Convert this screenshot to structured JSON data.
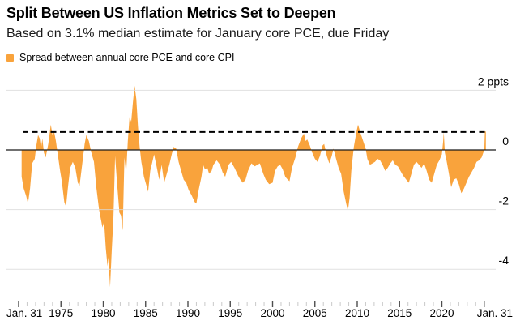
{
  "header": {
    "title": "Split Between US Inflation Metrics Set to Deepen",
    "subtitle": "Based on 3.1% median estimate for January core PCE, due Friday"
  },
  "legend": {
    "label": "Spread between annual core PCE and core CPI",
    "swatch_color": "#F9A33C"
  },
  "colors": {
    "accent_orange": "#F9A33C",
    "gridline": "#D9D9D9",
    "zero_line": "#1A1A1A",
    "dashed_line": "#000000",
    "minor_tick": "#C9C9C9",
    "major_tick": "#4D4D4D",
    "text": "#000000"
  },
  "chart_data": {
    "type": "area",
    "title": "Split Between US Inflation Metrics Set to Deepen",
    "unit": "ppts",
    "xlabel": "",
    "ylabel": "ppts",
    "xlim": [
      1970,
      2025.3
    ],
    "ylim": [
      -4.9,
      2.4
    ],
    "grid": "horizontal",
    "legend_position": "top-left",
    "x_ticks": {
      "minor_every_years": 1,
      "major": [
        {
          "year": 1970,
          "label": "Jan. 31"
        },
        {
          "year": 1975,
          "label": "1975"
        },
        {
          "year": 1980,
          "label": "1980"
        },
        {
          "year": 1985,
          "label": "1985"
        },
        {
          "year": 1990,
          "label": "1990"
        },
        {
          "year": 1995,
          "label": "1995"
        },
        {
          "year": 2000,
          "label": "2000"
        },
        {
          "year": 2005,
          "label": "2005"
        },
        {
          "year": 2010,
          "label": "2010"
        },
        {
          "year": 2015,
          "label": "2015"
        },
        {
          "year": 2020,
          "label": "2020"
        },
        {
          "year": 2025,
          "label": "Jan. 31"
        }
      ]
    },
    "y_ticks": [
      {
        "value": 2,
        "label": "2 ppts"
      },
      {
        "value": 0,
        "label": "0"
      },
      {
        "value": -2,
        "label": "-2"
      },
      {
        "value": -4,
        "label": "-4"
      }
    ],
    "reference_line": {
      "value": 0.6,
      "style": "dashed"
    },
    "series": [
      {
        "name": "Spread between annual core PCE and core CPI",
        "color": "#F9A33C",
        "points": [
          [
            1970.35,
            -0.9
          ],
          [
            1970.6,
            -1.3
          ],
          [
            1970.9,
            -1.55
          ],
          [
            1971.1,
            -1.8
          ],
          [
            1971.35,
            -1.3
          ],
          [
            1971.6,
            -0.45
          ],
          [
            1971.9,
            -0.3
          ],
          [
            1972.1,
            0.15
          ],
          [
            1972.3,
            0.5
          ],
          [
            1972.5,
            0.38
          ],
          [
            1972.65,
            0.05
          ],
          [
            1972.8,
            0.38
          ],
          [
            1973.0,
            -0.1
          ],
          [
            1973.2,
            -0.25
          ],
          [
            1973.5,
            0.2
          ],
          [
            1973.8,
            0.85
          ],
          [
            1974.0,
            0.5
          ],
          [
            1974.2,
            0.6
          ],
          [
            1974.4,
            0.3
          ],
          [
            1974.6,
            -0.1
          ],
          [
            1974.9,
            -0.7
          ],
          [
            1975.1,
            -1.05
          ],
          [
            1975.4,
            -1.75
          ],
          [
            1975.6,
            -1.9
          ],
          [
            1975.85,
            -1.2
          ],
          [
            1976.1,
            -0.6
          ],
          [
            1976.4,
            -0.4
          ],
          [
            1976.7,
            -0.6
          ],
          [
            1977.0,
            -1.1
          ],
          [
            1977.2,
            -1.2
          ],
          [
            1977.5,
            -0.5
          ],
          [
            1977.8,
            0.2
          ],
          [
            1978.0,
            0.5
          ],
          [
            1978.3,
            0.3
          ],
          [
            1978.6,
            -0.1
          ],
          [
            1978.9,
            -0.4
          ],
          [
            1979.2,
            -1.3
          ],
          [
            1979.5,
            -2.0
          ],
          [
            1979.9,
            -2.6
          ],
          [
            1980.1,
            -2.4
          ],
          [
            1980.3,
            -3.3
          ],
          [
            1980.5,
            -3.9
          ],
          [
            1980.6,
            -3.6
          ],
          [
            1980.8,
            -4.6
          ],
          [
            1981.0,
            -3.4
          ],
          [
            1981.2,
            -2.3
          ],
          [
            1981.4,
            -0.2
          ],
          [
            1981.6,
            -1.0
          ],
          [
            1981.9,
            -2.1
          ],
          [
            1982.1,
            -2.2
          ],
          [
            1982.3,
            -2.7
          ],
          [
            1982.5,
            -0.25
          ],
          [
            1982.7,
            -0.8
          ],
          [
            1982.9,
            0.3
          ],
          [
            1983.1,
            1.1
          ],
          [
            1983.3,
            0.95
          ],
          [
            1983.5,
            1.6
          ],
          [
            1983.7,
            2.15
          ],
          [
            1983.9,
            1.7
          ],
          [
            1984.1,
            0.8
          ],
          [
            1984.3,
            0.1
          ],
          [
            1984.5,
            -0.4
          ],
          [
            1984.8,
            -0.9
          ],
          [
            1985.0,
            -1.1
          ],
          [
            1985.3,
            -1.4
          ],
          [
            1985.55,
            -0.7
          ],
          [
            1985.8,
            -0.4
          ],
          [
            1986.0,
            -0.15
          ],
          [
            1986.3,
            -0.55
          ],
          [
            1986.6,
            -1.0
          ],
          [
            1986.9,
            -0.5
          ],
          [
            1987.2,
            -1.1
          ],
          [
            1987.5,
            -0.8
          ],
          [
            1987.8,
            -0.5
          ],
          [
            1988.0,
            -0.25
          ],
          [
            1988.3,
            0.1
          ],
          [
            1988.6,
            0.05
          ],
          [
            1988.9,
            -0.4
          ],
          [
            1989.1,
            -0.6
          ],
          [
            1989.5,
            -1.0
          ],
          [
            1989.8,
            -1.1
          ],
          [
            1990.1,
            -1.35
          ],
          [
            1990.4,
            -1.5
          ],
          [
            1990.8,
            -1.75
          ],
          [
            1991.0,
            -1.8
          ],
          [
            1991.3,
            -1.3
          ],
          [
            1991.6,
            -0.9
          ],
          [
            1991.8,
            -0.5
          ],
          [
            1992.0,
            -0.65
          ],
          [
            1992.3,
            -0.6
          ],
          [
            1992.5,
            -0.8
          ],
          [
            1992.8,
            -0.7
          ],
          [
            1993.0,
            -0.5
          ],
          [
            1993.4,
            -0.35
          ],
          [
            1993.8,
            -0.5
          ],
          [
            1994.1,
            -0.75
          ],
          [
            1994.4,
            -0.9
          ],
          [
            1994.8,
            -0.5
          ],
          [
            1995.1,
            -0.4
          ],
          [
            1995.5,
            -0.6
          ],
          [
            1995.9,
            -0.85
          ],
          [
            1996.2,
            -1.0
          ],
          [
            1996.5,
            -1.1
          ],
          [
            1996.8,
            -1.0
          ],
          [
            1997.1,
            -0.7
          ],
          [
            1997.5,
            -0.45
          ],
          [
            1997.9,
            -0.55
          ],
          [
            1998.2,
            -0.5
          ],
          [
            1998.5,
            -0.45
          ],
          [
            1998.9,
            -0.8
          ],
          [
            1999.2,
            -1.0
          ],
          [
            1999.6,
            -1.15
          ],
          [
            2000.0,
            -1.1
          ],
          [
            2000.3,
            -0.7
          ],
          [
            2000.6,
            -0.55
          ],
          [
            2000.9,
            -0.5
          ],
          [
            2001.2,
            -0.65
          ],
          [
            2001.5,
            -0.9
          ],
          [
            2001.8,
            -1.0
          ],
          [
            2002.0,
            -1.05
          ],
          [
            2002.3,
            -0.6
          ],
          [
            2002.7,
            -0.25
          ],
          [
            2003.0,
            0.1
          ],
          [
            2003.4,
            0.4
          ],
          [
            2003.7,
            0.55
          ],
          [
            2003.9,
            0.3
          ],
          [
            2004.1,
            0.35
          ],
          [
            2004.4,
            0.15
          ],
          [
            2004.7,
            -0.1
          ],
          [
            2005.0,
            -0.3
          ],
          [
            2005.3,
            -0.4
          ],
          [
            2005.6,
            -0.2
          ],
          [
            2005.9,
            0.15
          ],
          [
            2006.1,
            0.2
          ],
          [
            2006.4,
            -0.2
          ],
          [
            2006.7,
            -0.45
          ],
          [
            2007.0,
            -0.2
          ],
          [
            2007.2,
            0.05
          ],
          [
            2007.5,
            -0.3
          ],
          [
            2007.8,
            -0.6
          ],
          [
            2008.1,
            -0.8
          ],
          [
            2008.4,
            -1.4
          ],
          [
            2008.7,
            -1.8
          ],
          [
            2008.9,
            -2.05
          ],
          [
            2009.1,
            -1.6
          ],
          [
            2009.3,
            -0.7
          ],
          [
            2009.6,
            0.1
          ],
          [
            2009.9,
            0.6
          ],
          [
            2010.1,
            0.85
          ],
          [
            2010.4,
            0.55
          ],
          [
            2010.7,
            0.3
          ],
          [
            2011.0,
            0.05
          ],
          [
            2011.2,
            -0.3
          ],
          [
            2011.5,
            -0.5
          ],
          [
            2011.8,
            -0.45
          ],
          [
            2012.1,
            -0.4
          ],
          [
            2012.4,
            -0.3
          ],
          [
            2012.7,
            -0.35
          ],
          [
            2013.0,
            -0.5
          ],
          [
            2013.3,
            -0.7
          ],
          [
            2013.6,
            -0.6
          ],
          [
            2013.9,
            -0.45
          ],
          [
            2014.2,
            -0.35
          ],
          [
            2014.5,
            -0.5
          ],
          [
            2014.8,
            -0.55
          ],
          [
            2015.1,
            -0.7
          ],
          [
            2015.4,
            -0.85
          ],
          [
            2015.8,
            -1.0
          ],
          [
            2016.1,
            -1.1
          ],
          [
            2016.4,
            -0.8
          ],
          [
            2016.7,
            -0.5
          ],
          [
            2017.0,
            -0.4
          ],
          [
            2017.3,
            -0.5
          ],
          [
            2017.6,
            -0.6
          ],
          [
            2017.9,
            -0.45
          ],
          [
            2018.2,
            -0.7
          ],
          [
            2018.5,
            -1.0
          ],
          [
            2018.8,
            -1.1
          ],
          [
            2019.1,
            -0.8
          ],
          [
            2019.4,
            -0.5
          ],
          [
            2019.7,
            -0.35
          ],
          [
            2020.0,
            -0.15
          ],
          [
            2020.15,
            0.3
          ],
          [
            2020.22,
            0.6
          ],
          [
            2020.35,
            -0.1
          ],
          [
            2020.55,
            -0.35
          ],
          [
            2020.8,
            -0.75
          ],
          [
            2021.1,
            -1.25
          ],
          [
            2021.4,
            -1.0
          ],
          [
            2021.7,
            -0.95
          ],
          [
            2022.0,
            -1.15
          ],
          [
            2022.3,
            -1.45
          ],
          [
            2022.6,
            -1.3
          ],
          [
            2022.9,
            -1.1
          ],
          [
            2023.2,
            -0.9
          ],
          [
            2023.5,
            -0.75
          ],
          [
            2023.8,
            -0.6
          ],
          [
            2024.1,
            -0.4
          ],
          [
            2024.4,
            -0.35
          ],
          [
            2024.7,
            -0.25
          ],
          [
            2024.95,
            -0.05
          ],
          [
            2025.02,
            0.1
          ],
          [
            2025.08,
            0.62
          ],
          [
            2025.2,
            0.62
          ]
        ]
      }
    ]
  }
}
